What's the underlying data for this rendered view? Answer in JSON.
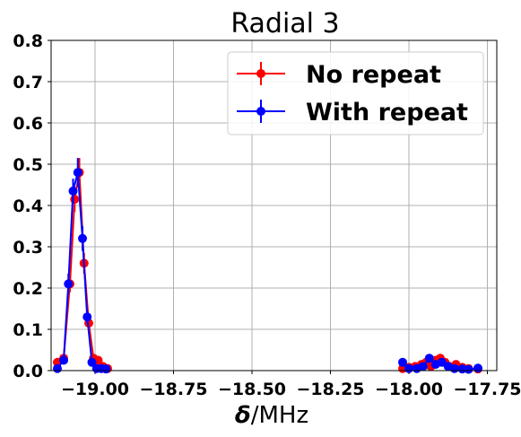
{
  "chart_data": {
    "type": "line",
    "title": "Radial 3",
    "xlabel_symbol": "δ",
    "xlabel_unit": "/MHz",
    "ylabel": "",
    "xlim": [
      -19.14,
      -17.72
    ],
    "ylim": [
      0,
      0.8
    ],
    "xticks": [
      -19.0,
      -18.75,
      -18.5,
      -18.25,
      -18.0,
      -17.75
    ],
    "xtick_labels": [
      "−19.00",
      "−18.75",
      "−18.50",
      "−18.25",
      "−18.00",
      "−17.75"
    ],
    "yticks": [
      0.0,
      0.1,
      0.2,
      0.3,
      0.4,
      0.5,
      0.6,
      0.7,
      0.8
    ],
    "ytick_labels": [
      "0.0",
      "0.1",
      "0.2",
      "0.3",
      "0.4",
      "0.5",
      "0.6",
      "0.7",
      "0.8"
    ],
    "grid": true,
    "legend_position": "top-right",
    "series": [
      {
        "name": "No repeat",
        "color": "#ff0000",
        "segments": [
          {
            "x": [
              -19.12,
              -19.1,
              -19.08,
              -19.065,
              -19.05,
              -19.035,
              -19.02,
              -19.005,
              -18.99,
              -18.975,
              -18.96
            ],
            "y": [
              0.02,
              0.03,
              0.21,
              0.415,
              0.48,
              0.26,
              0.115,
              0.03,
              0.025,
              0.01,
              0.005
            ],
            "err": [
              0.008,
              0.01,
              0.02,
              0.03,
              0.035,
              0.025,
              0.015,
              0.008,
              0.008,
              0.005,
              0.004
            ]
          },
          {
            "x": [
              -18.02,
              -18.0,
              -17.98,
              -17.96,
              -17.945,
              -17.93,
              -17.915,
              -17.9,
              -17.885,
              -17.87,
              -17.85,
              -17.83,
              -17.81,
              -17.78
            ],
            "y": [
              0.005,
              0.008,
              0.01,
              0.015,
              0.02,
              0.01,
              0.025,
              0.03,
              0.02,
              0.01,
              0.015,
              0.008,
              0.005,
              0.004
            ],
            "err": [
              0.004,
              0.005,
              0.005,
              0.006,
              0.007,
              0.005,
              0.008,
              0.009,
              0.007,
              0.005,
              0.006,
              0.005,
              0.004,
              0.004
            ]
          }
        ]
      },
      {
        "name": "With repeat",
        "color": "#0000ff",
        "segments": [
          {
            "x": [
              -19.12,
              -19.1,
              -19.085,
              -19.07,
              -19.055,
              -19.04,
              -19.025,
              -19.01,
              -18.995,
              -18.98,
              -18.965
            ],
            "y": [
              0.005,
              0.025,
              0.21,
              0.435,
              0.48,
              0.32,
              0.13,
              0.02,
              0.005,
              0.005,
              0.004
            ],
            "err": [
              0.004,
              0.008,
              0.025,
              0.03,
              0.035,
              0.03,
              0.015,
              0.006,
              0.004,
              0.004,
              0.003
            ]
          },
          {
            "x": [
              -18.02,
              -18.0,
              -17.975,
              -17.955,
              -17.935,
              -17.915,
              -17.895,
              -17.875,
              -17.855,
              -17.83,
              -17.81,
              -17.78
            ],
            "y": [
              0.02,
              0.005,
              0.005,
              0.01,
              0.03,
              0.015,
              0.02,
              0.01,
              0.005,
              0.004,
              0.003,
              0.006
            ],
            "err": [
              0.006,
              0.004,
              0.004,
              0.005,
              0.01,
              0.006,
              0.007,
              0.005,
              0.004,
              0.003,
              0.003,
              0.004
            ]
          }
        ]
      }
    ]
  }
}
